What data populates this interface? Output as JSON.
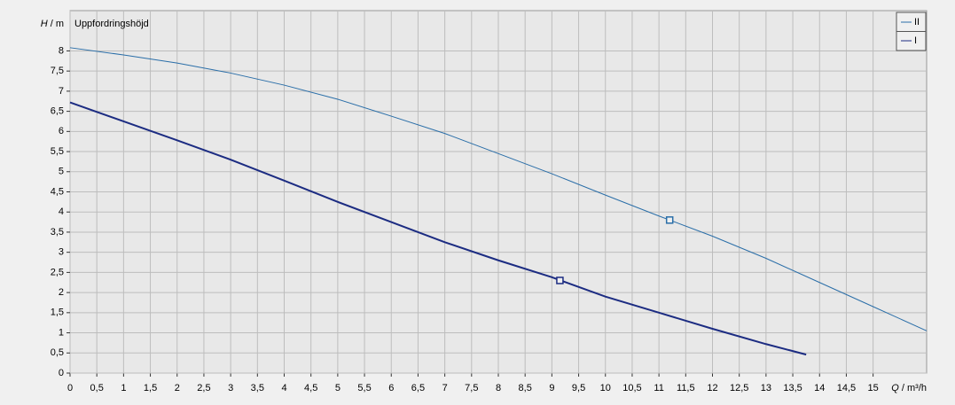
{
  "chart_data": {
    "type": "line",
    "title": "Uppfordringshöjd",
    "y_label": {
      "symbol": "H",
      "unit": " / m"
    },
    "x_label": {
      "symbol": "Q",
      "unit": " / m³/h"
    },
    "xlim": [
      0,
      16
    ],
    "ylim": [
      0,
      9
    ],
    "grid": true,
    "legend": "top-right",
    "xticks": [
      0,
      {
        "value": 0.5,
        "label": "0,5"
      },
      1,
      {
        "value": 1.5,
        "label": "1,5"
      },
      2,
      {
        "value": 2.5,
        "label": "2,5"
      },
      3,
      {
        "value": 3.5,
        "label": "3,5"
      },
      4,
      {
        "value": 4.5,
        "label": "4,5"
      },
      5,
      {
        "value": 5.5,
        "label": "5,5"
      },
      6,
      {
        "value": 6.5,
        "label": "6,5"
      },
      7,
      {
        "value": 7.5,
        "label": "7,5"
      },
      8,
      {
        "value": 8.5,
        "label": "8,5"
      },
      9,
      {
        "value": 9.5,
        "label": "9,5"
      },
      10,
      {
        "value": 10.5,
        "label": "10,5"
      },
      11,
      {
        "value": 11.5,
        "label": "11,5"
      },
      12,
      {
        "value": 12.5,
        "label": "12,5"
      },
      13,
      {
        "value": 13.5,
        "label": "13,5"
      },
      14,
      {
        "value": 14.5,
        "label": "14,5"
      },
      15
    ],
    "yticks": [
      0,
      {
        "value": 0.5,
        "label": "0,5"
      },
      1,
      {
        "value": 1.5,
        "label": "1,5"
      },
      2,
      {
        "value": 2.5,
        "label": "2,5"
      },
      3,
      {
        "value": 3.5,
        "label": "3,5"
      },
      4,
      {
        "value": 4.5,
        "label": "4,5"
      },
      5,
      {
        "value": 5.5,
        "label": "5,5"
      },
      6,
      {
        "value": 6.5,
        "label": "6,5"
      },
      7,
      {
        "value": 7.5,
        "label": "7,5"
      },
      8
    ],
    "series": [
      {
        "name": "II",
        "color": "#2a6ea8",
        "width": 1,
        "x": [
          0,
          1,
          2,
          3,
          4,
          5,
          6,
          7,
          8,
          9,
          10,
          11,
          12,
          13,
          14,
          15,
          16
        ],
        "values": [
          8.08,
          7.9,
          7.7,
          7.45,
          7.15,
          6.8,
          6.38,
          5.95,
          5.45,
          4.95,
          4.42,
          3.9,
          3.4,
          2.85,
          2.25,
          1.65,
          1.05
        ],
        "point": {
          "x": 11.2,
          "y": 3.8
        }
      },
      {
        "name": "I",
        "color": "#1c2c82",
        "width": 2,
        "x": [
          0,
          1,
          2,
          3,
          4,
          5,
          6,
          7,
          8,
          9,
          10,
          11,
          12,
          13,
          13.75
        ],
        "values": [
          6.72,
          6.25,
          5.78,
          5.3,
          4.78,
          4.25,
          3.75,
          3.25,
          2.8,
          2.38,
          1.9,
          1.5,
          1.1,
          0.72,
          0.46
        ],
        "point": {
          "x": 9.15,
          "y": 2.3
        }
      }
    ]
  }
}
